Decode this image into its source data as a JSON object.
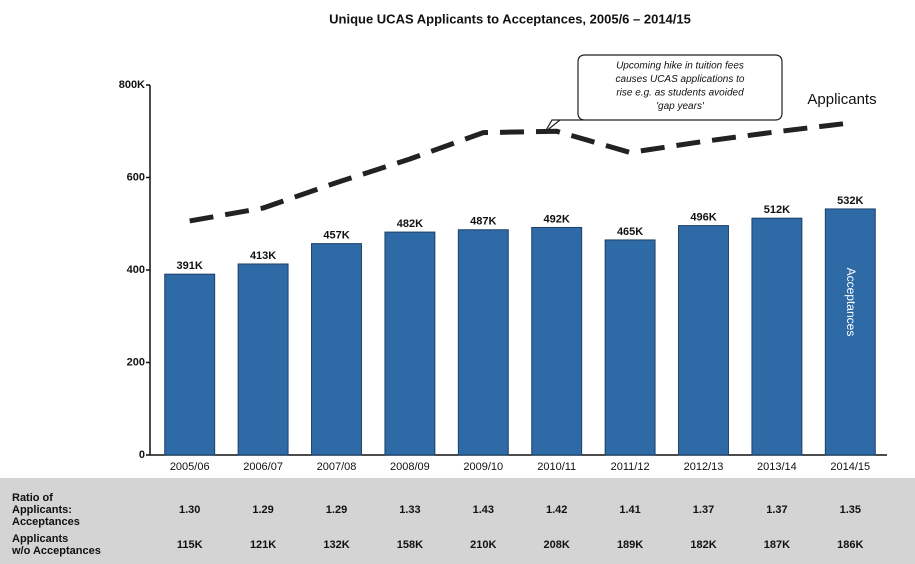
{
  "chart_data": {
    "type": "bar",
    "title": "Unique UCAS Applicants to Acceptances, 2005/6 – 2014/15",
    "categories": [
      "2005/06",
      "2006/07",
      "2007/08",
      "2008/09",
      "2009/10",
      "2010/11",
      "2011/12",
      "2012/13",
      "2013/14",
      "2014/15"
    ],
    "series": [
      {
        "name": "Acceptances",
        "type": "bar",
        "color": "#2e6aa6",
        "values": [
          391,
          413,
          457,
          482,
          487,
          492,
          465,
          496,
          512,
          532
        ],
        "value_labels": [
          "391K",
          "413K",
          "457K",
          "482K",
          "487K",
          "492K",
          "465K",
          "496K",
          "512K",
          "532K"
        ]
      },
      {
        "name": "Applicants",
        "type": "line",
        "color": "#222222",
        "values": [
          506,
          534,
          589,
          640,
          697,
          700,
          654,
          678,
          699,
          718
        ]
      }
    ],
    "ylim": [
      0,
      800
    ],
    "yticks": [
      0,
      200,
      400,
      600,
      {
        "value": 800,
        "label": "800K"
      }
    ],
    "annotation": [
      "Upcoming hike in tuition fees",
      "causes UCAS applications to",
      "rise e.g. as students avoided",
      "'gap years'"
    ]
  },
  "table": {
    "rows": [
      {
        "label": [
          "Ratio of",
          "Applicants:",
          "Acceptances"
        ],
        "values": [
          "1.30",
          "1.29",
          "1.29",
          "1.33",
          "1.43",
          "1.42",
          "1.41",
          "1.37",
          "1.37",
          "1.35"
        ]
      },
      {
        "label": [
          "Applicants",
          "w/o Acceptances"
        ],
        "values": [
          "115K",
          "121K",
          "132K",
          "158K",
          "210K",
          "208K",
          "189K",
          "182K",
          "187K",
          "186K"
        ]
      }
    ]
  }
}
